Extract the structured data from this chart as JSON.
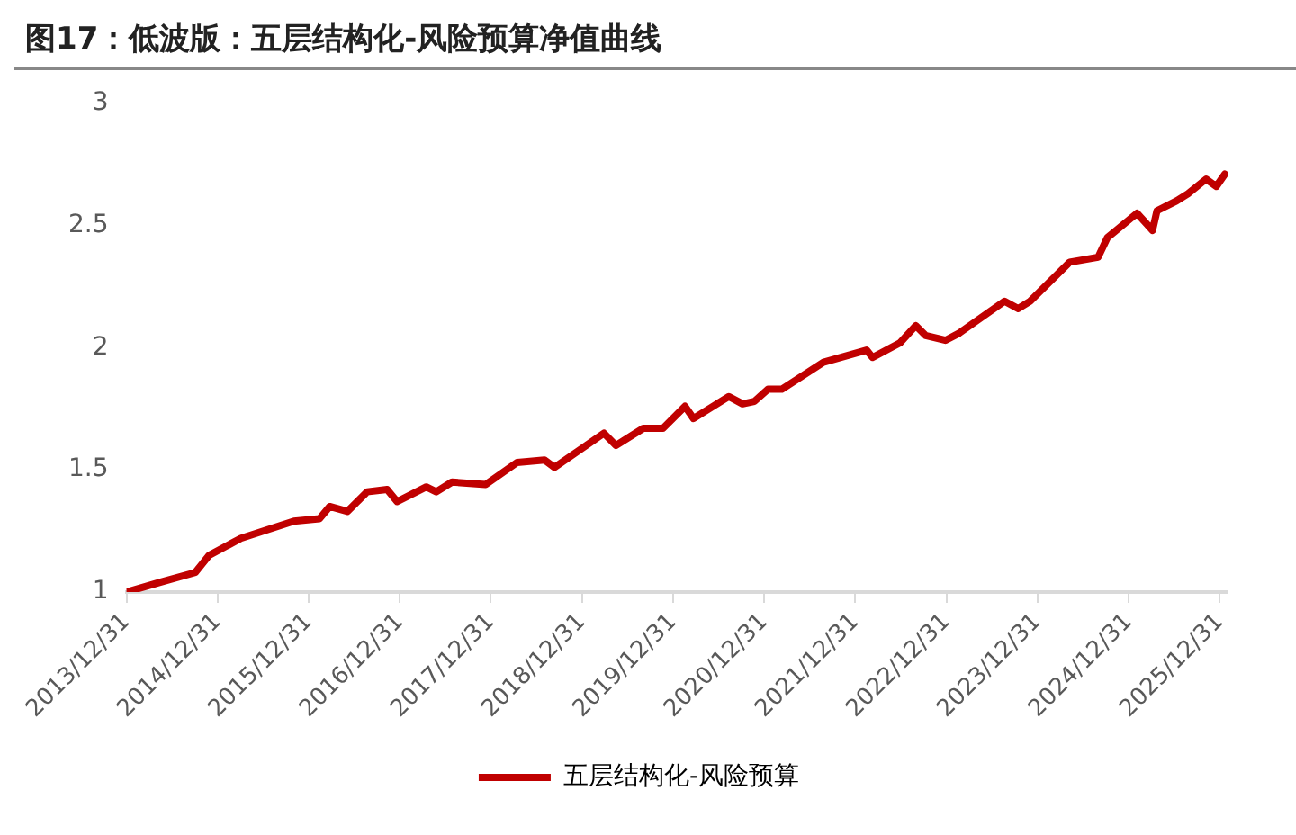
{
  "chart_data": {
    "type": "line",
    "title": "图17：低波版：五层结构化-风险预算净值曲线",
    "series": [
      {
        "name": "五层结构化-风险预算",
        "color": "#c00000",
        "x": [
          "2013-12-31",
          "2014-05-15",
          "2014-10-03",
          "2014-11-27",
          "2015-04-04",
          "2015-11-02",
          "2016-02-13",
          "2016-03-25",
          "2016-06-04",
          "2016-08-22",
          "2016-11-10",
          "2016-12-20",
          "2017-04-16",
          "2017-05-26",
          "2017-07-28",
          "2017-12-10",
          "2018-04-15",
          "2018-08-03",
          "2018-09-12",
          "2019-03-29",
          "2019-05-16",
          "2019-09-03",
          "2019-11-21",
          "2020-02-17",
          "2020-03-22",
          "2020-08-11",
          "2020-10-05",
          "2020-11-21",
          "2021-01-15",
          "2021-03-11",
          "2021-08-25",
          "2022-02-14",
          "2022-03-10",
          "2022-06-28",
          "2022-08-30",
          "2022-10-09",
          "2022-12-27",
          "2023-02-21",
          "2023-08-21",
          "2023-10-15",
          "2023-12-01",
          "2024-05-08",
          "2024-08-30",
          "2024-10-06",
          "2025-02-02",
          "2025-04-05",
          "2025-04-23",
          "2025-07-10",
          "2025-08-25",
          "2025-11-06",
          "2025-12-17",
          "2026-01-20"
        ],
        "values": [
          1.0,
          1.04,
          1.08,
          1.15,
          1.22,
          1.29,
          1.3,
          1.35,
          1.33,
          1.41,
          1.42,
          1.37,
          1.43,
          1.41,
          1.45,
          1.44,
          1.53,
          1.54,
          1.51,
          1.65,
          1.6,
          1.67,
          1.67,
          1.76,
          1.71,
          1.8,
          1.77,
          1.78,
          1.83,
          1.83,
          1.94,
          1.99,
          1.96,
          2.02,
          2.09,
          2.05,
          2.03,
          2.06,
          2.19,
          2.16,
          2.19,
          2.35,
          2.37,
          2.45,
          2.55,
          2.48,
          2.56,
          2.6,
          2.63,
          2.69,
          2.66,
          2.71
        ]
      }
    ],
    "xlim": [
      "2013-12-31",
      "2026-01-31"
    ],
    "xticks": [
      {
        "value": "2013-12-31",
        "label": "2013/12/31"
      },
      {
        "value": "2014-12-31",
        "label": "2014/12/31"
      },
      {
        "value": "2015-12-31",
        "label": "2015/12/31"
      },
      {
        "value": "2016-12-31",
        "label": "2016/12/31"
      },
      {
        "value": "2017-12-31",
        "label": "2017/12/31"
      },
      {
        "value": "2018-12-31",
        "label": "2018/12/31"
      },
      {
        "value": "2019-12-31",
        "label": "2019/12/31"
      },
      {
        "value": "2020-12-31",
        "label": "2020/12/31"
      },
      {
        "value": "2021-12-31",
        "label": "2021/12/31"
      },
      {
        "value": "2022-12-31",
        "label": "2022/12/31"
      },
      {
        "value": "2023-12-31",
        "label": "2023/12/31"
      },
      {
        "value": "2024-12-31",
        "label": "2024/12/31"
      },
      {
        "value": "2025-12-31",
        "label": "2025/12/31"
      }
    ],
    "ylim": [
      1,
      3
    ],
    "yticks": [
      1,
      1.5,
      2,
      2.5,
      3
    ],
    "grid": false,
    "legend": "bottom",
    "marker": "none",
    "line_style": "solid"
  }
}
